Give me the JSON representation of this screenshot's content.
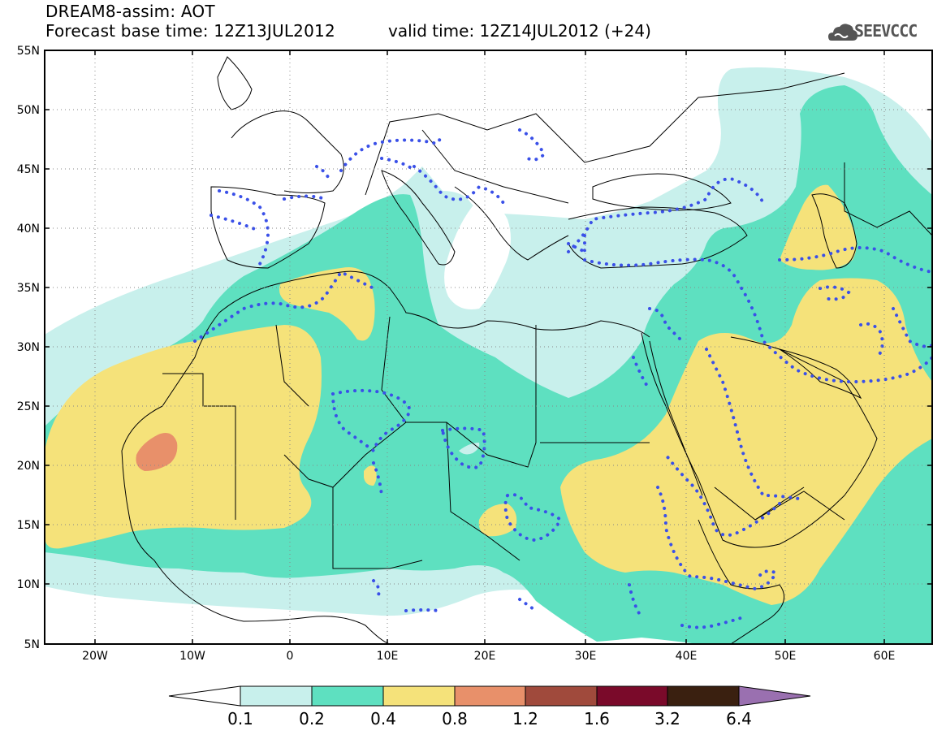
{
  "title": {
    "line1": "DREAM8-assim: AOT",
    "line2": "Forecast base time: 12Z13JUL2012",
    "line3": "valid time: 12Z14JUL2012 (+24)"
  },
  "logo": {
    "text": "SEEVCCC",
    "icon": "cloud-logo-icon"
  },
  "axes": {
    "lat_ticks": [
      "55N",
      "50N",
      "45N",
      "40N",
      "35N",
      "30N",
      "25N",
      "20N",
      "15N",
      "10N",
      "5N"
    ],
    "lon_ticks": [
      "20W",
      "10W",
      "0",
      "10E",
      "20E",
      "30E",
      "40E",
      "50E",
      "60E"
    ],
    "lon_range": [
      -25,
      65
    ],
    "lat_range": [
      5,
      55
    ]
  },
  "colorbar": {
    "labels": [
      "0.1",
      "0.2",
      "0.4",
      "0.8",
      "1.2",
      "1.6",
      "3.2",
      "6.4"
    ],
    "colors": [
      "#ffffff",
      "#c8f0ec",
      "#5ee0c0",
      "#f5e27a",
      "#e8906a",
      "#a04a3c",
      "#7a0a2a",
      "#3a2010",
      "#9a70b0"
    ]
  }
}
